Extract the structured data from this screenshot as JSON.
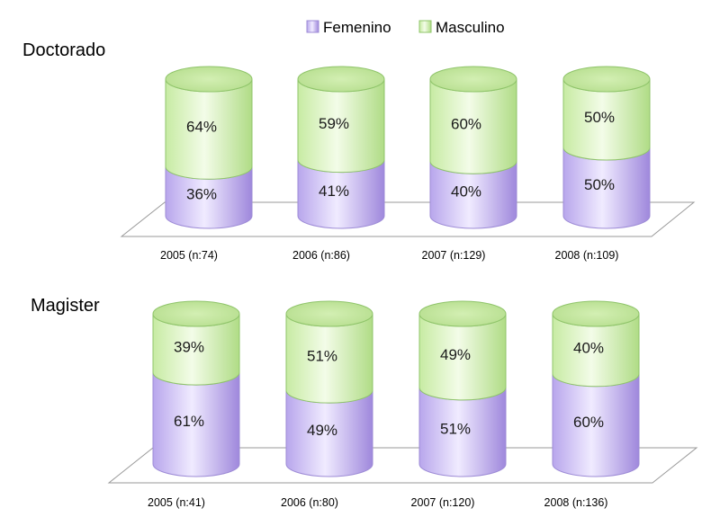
{
  "legend": {
    "female": "Femenino",
    "male": "Masculino"
  },
  "colors": {
    "female": "#cdbff2",
    "female_dark": "#a48ee0",
    "male": "#dff5c4",
    "male_dark": "#b4e08c",
    "edge": "#8fc46a",
    "edge_female": "#9d8bd6",
    "floor": "#ffffff",
    "floor_edge": "#9a9a9a"
  },
  "chart_data": [
    {
      "type": "bar",
      "stacked": true,
      "percent": true,
      "title": "Doctorado",
      "categories": [
        "2005 (n:74)",
        "2006 (n:86)",
        "2007 (n:129)",
        "2008 (n:109)"
      ],
      "series": [
        {
          "name": "Femenino",
          "values": [
            36,
            41,
            40,
            50
          ]
        },
        {
          "name": "Masculino",
          "values": [
            64,
            59,
            60,
            50
          ]
        }
      ],
      "ylim": [
        0,
        100
      ],
      "legend_position": "top-center"
    },
    {
      "type": "bar",
      "stacked": true,
      "percent": true,
      "title": "Magister",
      "categories": [
        "2005 (n:41)",
        "2006 (n:80)",
        "2007 (n:120)",
        "2008 (n:136)"
      ],
      "series": [
        {
          "name": "Femenino",
          "values": [
            61,
            49,
            51,
            60
          ]
        },
        {
          "name": "Masculino",
          "values": [
            39,
            51,
            49,
            40
          ]
        }
      ],
      "ylim": [
        0,
        100
      ]
    }
  ]
}
